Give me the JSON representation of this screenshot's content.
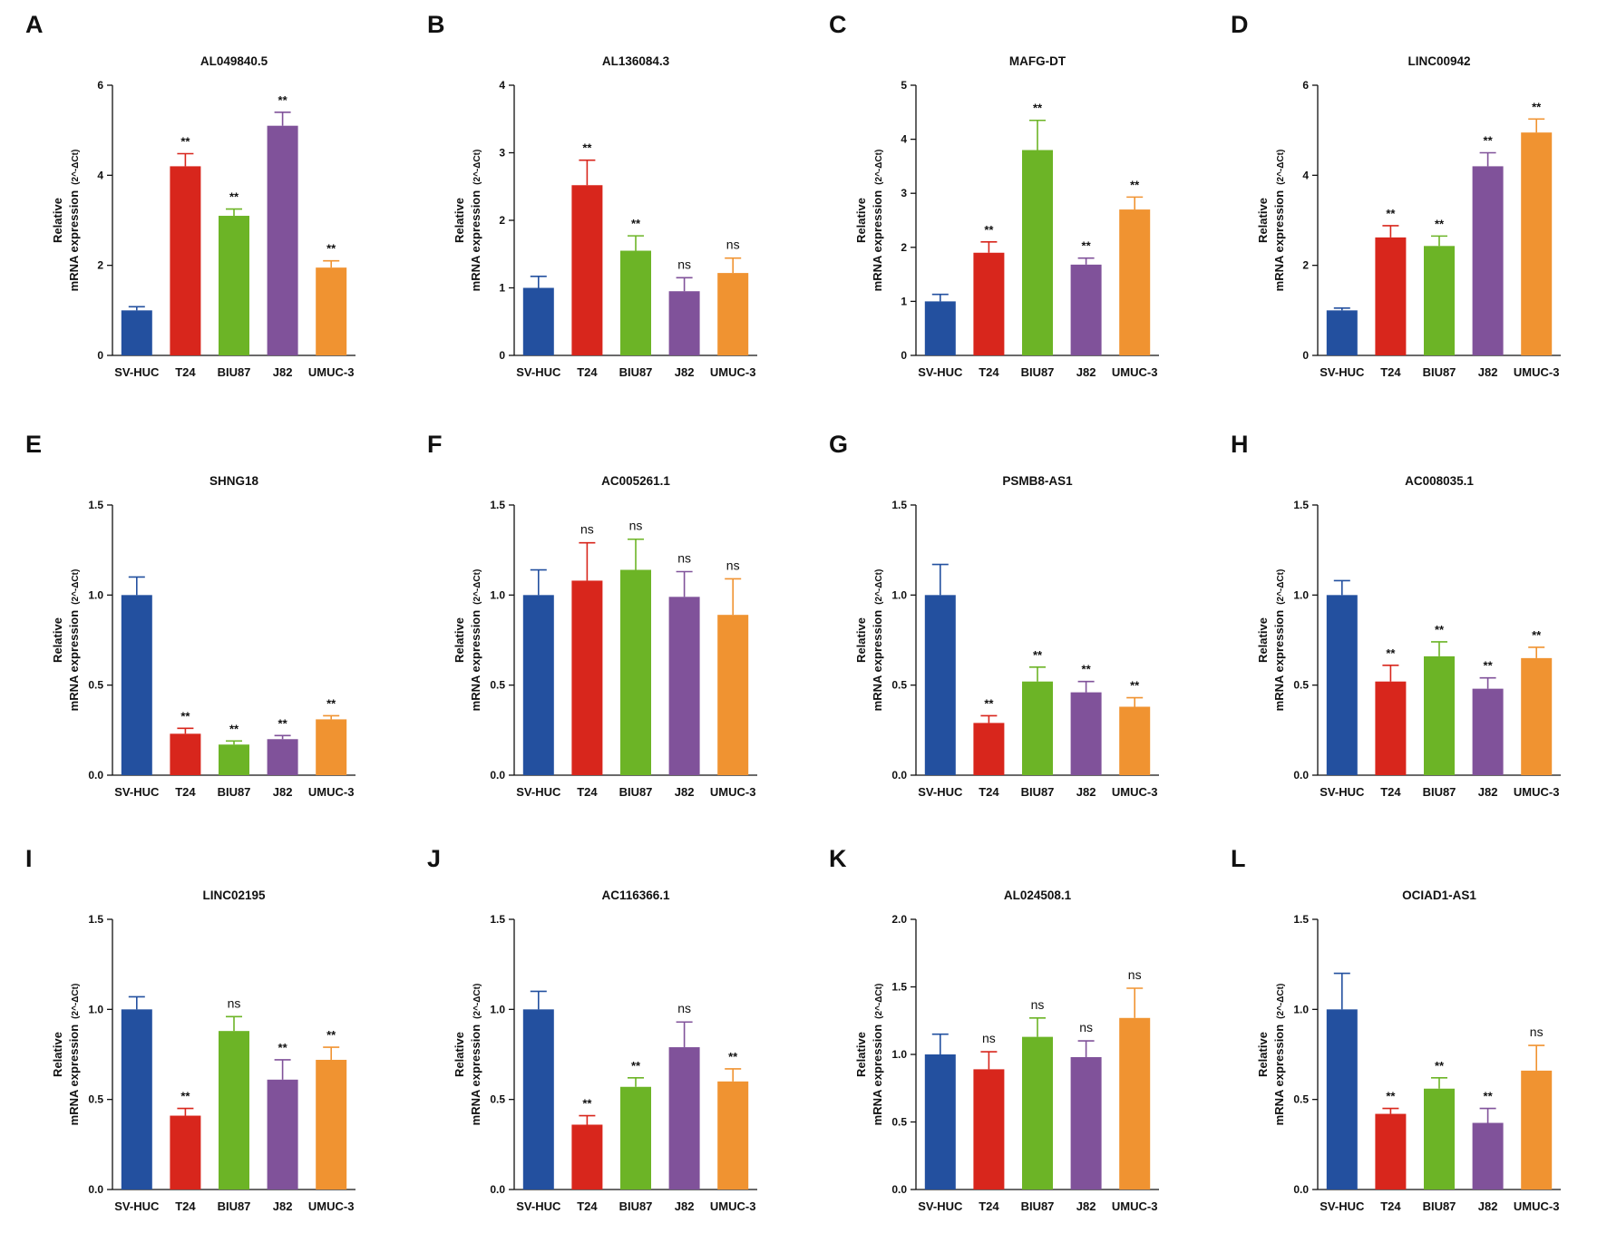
{
  "figure": {
    "y_axis_label_line1": "Relative",
    "y_axis_label_line2": "mRNA expression",
    "y_axis_label_unit": "(2^-ΔCt)",
    "categories": [
      "SV-HUC",
      "T24",
      "BIU87",
      "J82",
      "UMUC-3"
    ],
    "bar_colors": [
      "#23509f",
      "#d8261c",
      "#6cb426",
      "#80529a",
      "#f09331"
    ]
  },
  "chart_data": [
    {
      "panel": "A",
      "type": "bar",
      "title": "AL049840.5",
      "ylim": [
        0,
        6
      ],
      "yticks": [
        "0",
        "2",
        "4",
        "6"
      ],
      "values": [
        1.0,
        4.2,
        3.1,
        5.1,
        1.95
      ],
      "errors": [
        0.08,
        0.28,
        0.15,
        0.3,
        0.15
      ],
      "significance": [
        "",
        "**",
        "**",
        "**",
        "**"
      ]
    },
    {
      "panel": "B",
      "type": "bar",
      "title": "AL136084.3",
      "ylim": [
        0,
        4
      ],
      "yticks": [
        "0",
        "1",
        "2",
        "3",
        "4"
      ],
      "values": [
        1.0,
        2.52,
        1.55,
        0.95,
        1.22
      ],
      "errors": [
        0.17,
        0.37,
        0.22,
        0.2,
        0.22
      ],
      "significance": [
        "",
        "**",
        "**",
        "ns",
        "ns"
      ]
    },
    {
      "panel": "C",
      "type": "bar",
      "title": "MAFG-DT",
      "ylim": [
        0,
        5
      ],
      "yticks": [
        "0",
        "1",
        "2",
        "3",
        "4",
        "5"
      ],
      "values": [
        1.0,
        1.9,
        3.8,
        1.68,
        2.7
      ],
      "errors": [
        0.13,
        0.2,
        0.55,
        0.12,
        0.23
      ],
      "significance": [
        "",
        "**",
        "**",
        "**",
        "**"
      ]
    },
    {
      "panel": "D",
      "type": "bar",
      "title": "LINC00942",
      "ylim": [
        0,
        6
      ],
      "yticks": [
        "0",
        "2",
        "4",
        "6"
      ],
      "values": [
        1.0,
        2.62,
        2.43,
        4.2,
        4.95
      ],
      "errors": [
        0.05,
        0.26,
        0.22,
        0.3,
        0.3
      ],
      "significance": [
        "",
        "**",
        "**",
        "**",
        "**"
      ]
    },
    {
      "panel": "E",
      "type": "bar",
      "title": "SHNG18",
      "ylim": [
        0,
        1.5
      ],
      "yticks": [
        "0.0",
        "0.5",
        "1.0",
        "1.5"
      ],
      "values": [
        1.0,
        0.23,
        0.17,
        0.2,
        0.31
      ],
      "errors": [
        0.1,
        0.03,
        0.02,
        0.02,
        0.02
      ],
      "significance": [
        "",
        "**",
        "**",
        "**",
        "**"
      ]
    },
    {
      "panel": "F",
      "type": "bar",
      "title": "AC005261.1",
      "ylim": [
        0,
        1.5
      ],
      "yticks": [
        "0.0",
        "0.5",
        "1.0",
        "1.5"
      ],
      "values": [
        1.0,
        1.08,
        1.14,
        0.99,
        0.89
      ],
      "errors": [
        0.14,
        0.21,
        0.17,
        0.14,
        0.2
      ],
      "significance": [
        "",
        "ns",
        "ns",
        "ns",
        "ns"
      ]
    },
    {
      "panel": "G",
      "type": "bar",
      "title": "PSMB8-AS1",
      "ylim": [
        0,
        1.5
      ],
      "yticks": [
        "0.0",
        "0.5",
        "1.0",
        "1.5"
      ],
      "values": [
        1.0,
        0.29,
        0.52,
        0.46,
        0.38
      ],
      "errors": [
        0.17,
        0.04,
        0.08,
        0.06,
        0.05
      ],
      "significance": [
        "",
        "**",
        "**",
        "**",
        "**"
      ]
    },
    {
      "panel": "H",
      "type": "bar",
      "title": "AC008035.1",
      "ylim": [
        0,
        1.5
      ],
      "yticks": [
        "0.0",
        "0.5",
        "1.0",
        "1.5"
      ],
      "values": [
        1.0,
        0.52,
        0.66,
        0.48,
        0.65
      ],
      "errors": [
        0.08,
        0.09,
        0.08,
        0.06,
        0.06
      ],
      "significance": [
        "",
        "**",
        "**",
        "**",
        "**"
      ]
    },
    {
      "panel": "I",
      "type": "bar",
      "title": "LINC02195",
      "ylim": [
        0,
        1.5
      ],
      "yticks": [
        "0.0",
        "0.5",
        "1.0",
        "1.5"
      ],
      "values": [
        1.0,
        0.41,
        0.88,
        0.61,
        0.72
      ],
      "errors": [
        0.07,
        0.04,
        0.08,
        0.11,
        0.07
      ],
      "significance": [
        "",
        "**",
        "ns",
        "**",
        "**"
      ]
    },
    {
      "panel": "J",
      "type": "bar",
      "title": "AC116366.1",
      "ylim": [
        0,
        1.5
      ],
      "yticks": [
        "0.0",
        "0.5",
        "1.0",
        "1.5"
      ],
      "values": [
        1.0,
        0.36,
        0.57,
        0.79,
        0.6
      ],
      "errors": [
        0.1,
        0.05,
        0.05,
        0.14,
        0.07
      ],
      "significance": [
        "",
        "**",
        "**",
        "ns",
        "**"
      ]
    },
    {
      "panel": "K",
      "type": "bar",
      "title": "AL024508.1",
      "ylim": [
        0,
        2.0
      ],
      "yticks": [
        "0.0",
        "0.5",
        "1.0",
        "1.5",
        "2.0"
      ],
      "values": [
        1.0,
        0.89,
        1.13,
        0.98,
        1.27
      ],
      "errors": [
        0.15,
        0.13,
        0.14,
        0.12,
        0.22
      ],
      "significance": [
        "",
        "ns",
        "ns",
        "ns",
        "ns"
      ]
    },
    {
      "panel": "L",
      "type": "bar",
      "title": "OCIAD1-AS1",
      "ylim": [
        0,
        1.5
      ],
      "yticks": [
        "0.0",
        "0.5",
        "1.0",
        "1.5"
      ],
      "values": [
        1.0,
        0.42,
        0.56,
        0.37,
        0.66
      ],
      "errors": [
        0.2,
        0.03,
        0.06,
        0.08,
        0.14
      ],
      "significance": [
        "",
        "**",
        "**",
        "**",
        "ns"
      ]
    }
  ]
}
